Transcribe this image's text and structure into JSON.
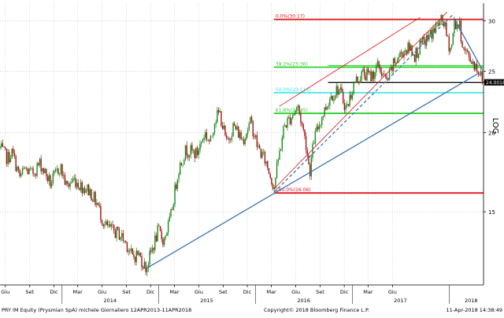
{
  "chart_data": {
    "type": "candlestick",
    "subtitle": "",
    "price_axis": {
      "scale": "log",
      "range": [
        11.5,
        32
      ],
      "ticks": [
        15,
        20,
        25,
        30
      ],
      "label": "LOG",
      "last_price": "24.0018"
    },
    "time_axis": {
      "month_ticks": [
        "Mar",
        "Giu",
        "Set",
        "Dic",
        "Mar",
        "Giu",
        "Set",
        "Dic",
        "Mar",
        "Giu",
        "Set",
        "Dic",
        "Mar",
        "Giu",
        "Set",
        "Dic",
        "Mar",
        "Giu"
      ],
      "year_labels": [
        "2014",
        "2015",
        "2016",
        "2017",
        "2018"
      ],
      "range": [
        "2013-04-12",
        "2018-04-11"
      ]
    },
    "fibonacci_levels": [
      {
        "label": "0.0%(30.17)",
        "value": 30.17,
        "color": "#e0161b"
      },
      {
        "label": "38.2%(25.36)",
        "value": 25.36,
        "color": "#2ed12e"
      },
      {
        "label": "50.0%(23.115)",
        "value": 23.115,
        "color": "#39e6e6"
      },
      {
        "label": "61.8%(21.45)",
        "value": 21.45,
        "color": "#2ed12e"
      },
      {
        "label": "100.0%(16.06)",
        "value": 16.06,
        "color": "#e0161b"
      }
    ],
    "extra_levels": [
      {
        "value": 24.0018,
        "color": "#000000"
      },
      {
        "value": 25.5,
        "color": "#2ed12e"
      }
    ],
    "trendlines": [
      {
        "kind": "support",
        "color": "#3a74b4",
        "style": "solid",
        "from": [
          "2014-10-15",
          12.2
        ],
        "to": [
          "2018-03-23",
          24.8
        ]
      },
      {
        "kind": "support",
        "color": "#3a74b4",
        "style": "dashed",
        "from": [
          "2016-02-10",
          16.1
        ],
        "to": [
          "2017-12-20",
          30.8
        ]
      },
      {
        "kind": "channel-top",
        "color": "#e0161b",
        "style": "solid",
        "from": [
          "2016-02-10",
          16.3
        ],
        "to": [
          "2017-11-25",
          31.0
        ]
      },
      {
        "kind": "channel-top",
        "color": "#e0161b",
        "style": "solid",
        "from": [
          "2016-03-01",
          22.0
        ],
        "to": [
          "2017-08-15",
          30.4
        ]
      },
      {
        "kind": "resistance",
        "color": "#3a74b4",
        "style": "solid",
        "from": [
          "2017-12-20",
          30.3
        ],
        "to": [
          "2018-04-05",
          25.2
        ]
      }
    ],
    "price_path": [
      [
        "2013-04-12",
        18.9
      ],
      [
        "2013-05-10",
        18.2
      ],
      [
        "2013-05-28",
        18.6
      ],
      [
        "2013-06-25",
        17.0
      ],
      [
        "2013-07-15",
        17.5
      ],
      [
        "2013-08-10",
        17.2
      ],
      [
        "2013-09-10",
        17.9
      ],
      [
        "2013-10-20",
        16.6
      ],
      [
        "2013-11-25",
        17.7
      ],
      [
        "2013-12-20",
        16.4
      ],
      [
        "2014-01-15",
        16.9
      ],
      [
        "2014-02-10",
        16.5
      ],
      [
        "2014-03-15",
        16.2
      ],
      [
        "2014-04-15",
        15.4
      ],
      [
        "2014-05-10",
        14.3
      ],
      [
        "2014-06-10",
        14.0
      ],
      [
        "2014-07-10",
        13.8
      ],
      [
        "2014-08-05",
        13.3
      ],
      [
        "2014-08-25",
        12.7
      ],
      [
        "2014-09-15",
        12.9
      ],
      [
        "2014-10-15",
        12.2
      ],
      [
        "2014-11-05",
        13.0
      ],
      [
        "2014-11-30",
        14.0
      ],
      [
        "2014-12-20",
        13.5
      ],
      [
        "2015-01-15",
        14.6
      ],
      [
        "2015-02-15",
        17.5
      ],
      [
        "2015-03-15",
        18.8
      ],
      [
        "2015-04-25",
        18.5
      ],
      [
        "2015-05-25",
        20.0
      ],
      [
        "2015-06-15",
        19.2
      ],
      [
        "2015-07-01",
        21.0
      ],
      [
        "2015-07-20",
        21.5
      ],
      [
        "2015-08-15",
        19.2
      ],
      [
        "2015-09-10",
        20.5
      ],
      [
        "2015-10-15",
        19.5
      ],
      [
        "2015-11-15",
        20.8
      ],
      [
        "2015-12-10",
        19.0
      ],
      [
        "2016-01-10",
        18.0
      ],
      [
        "2016-02-10",
        16.4
      ],
      [
        "2016-03-01",
        18.5
      ],
      [
        "2016-03-20",
        20.5
      ],
      [
        "2016-04-15",
        21.2
      ],
      [
        "2016-05-10",
        22.0
      ],
      [
        "2016-06-10",
        19.2
      ],
      [
        "2016-06-24",
        17.3
      ],
      [
        "2016-07-10",
        19.5
      ],
      [
        "2016-08-05",
        21.0
      ],
      [
        "2016-09-10",
        22.8
      ],
      [
        "2016-10-10",
        23.5
      ],
      [
        "2016-11-10",
        21.8
      ],
      [
        "2016-12-10",
        24.0
      ],
      [
        "2017-01-10",
        24.8
      ],
      [
        "2017-02-10",
        24.5
      ],
      [
        "2017-03-10",
        25.5
      ],
      [
        "2017-04-10",
        24.0
      ],
      [
        "2017-05-10",
        25.8
      ],
      [
        "2017-06-15",
        27.0
      ],
      [
        "2017-07-10",
        27.2
      ],
      [
        "2017-07-25",
        26.5
      ],
      [
        "2017-08-20",
        27.5
      ],
      [
        "2017-09-20",
        28.4
      ],
      [
        "2017-10-20",
        29.6
      ],
      [
        "2017-11-10",
        30.1
      ],
      [
        "2017-11-25",
        28.0
      ],
      [
        "2017-12-10",
        27.0
      ],
      [
        "2017-12-22",
        29.8
      ],
      [
        "2018-01-10",
        29.5
      ],
      [
        "2018-01-25",
        27.0
      ],
      [
        "2018-02-10",
        26.5
      ],
      [
        "2018-02-25",
        26.0
      ],
      [
        "2018-03-10",
        25.6
      ],
      [
        "2018-03-25",
        25.0
      ],
      [
        "2018-04-11",
        24.0
      ]
    ]
  },
  "footer": {
    "left": "PRY IM Equity (Prysmian SpA) michele  Giornaliero 12APR2013-11APR2018",
    "center": "Copyright© 2018 Bloomberg Finance L.P.",
    "right": "11-Apr-2018 14:38:49"
  },
  "colors": {
    "candle_up": "#1a8a1a",
    "candle_down": "#a31515",
    "axis": "#000000",
    "grid": "#b4b4b4"
  }
}
